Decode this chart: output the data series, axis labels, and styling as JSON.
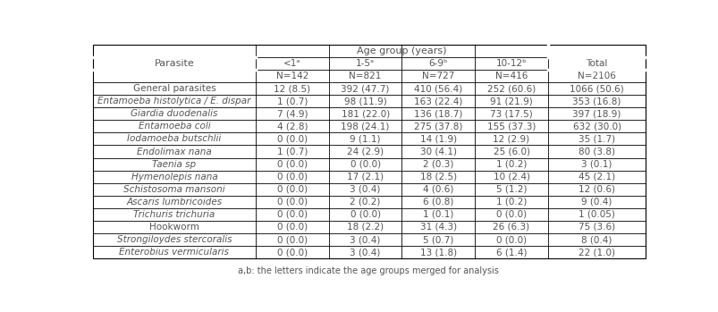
{
  "title": "Age group (years)",
  "footnote": "a,b: the letters indicate the age groups merged for analysis",
  "col_headers": [
    "<1ᵃ",
    "1-5ᵃ",
    "6-9ᵇ",
    "10-12ᵇ",
    "Total"
  ],
  "col_n": [
    "N=142",
    "N=821",
    "N=727",
    "N=416",
    "N=2106"
  ],
  "row_label_header": "Parasite",
  "rows": [
    {
      "label": "General parasites",
      "italic": false,
      "values": [
        "12 (8.5)",
        "392 (47.7)",
        "410 (56.4)",
        "252 (60.6)",
        "1066 (50.6)"
      ]
    },
    {
      "label": "Entamoeba histolytica / E. dispar",
      "italic": true,
      "values": [
        "1 (0.7)",
        "98 (11.9)",
        "163 (22.4)",
        "91 (21.9)",
        "353 (16.8)"
      ]
    },
    {
      "label": "Giardia duodenalis",
      "italic": true,
      "values": [
        "7 (4.9)",
        "181 (22.0)",
        "136 (18.7)",
        "73 (17.5)",
        "397 (18.9)"
      ]
    },
    {
      "label": "Entamoeba coli",
      "italic": true,
      "values": [
        "4 (2.8)",
        "198 (24.1)",
        "275 (37.8)",
        "155 (37.3)",
        "632 (30.0)"
      ]
    },
    {
      "label": "Iodamoeba butschlii",
      "italic": true,
      "values": [
        "0 (0.0)",
        "9 (1.1)",
        "14 (1.9)",
        "12 (2.9)",
        "35 (1.7)"
      ]
    },
    {
      "label": "Endolimax nana",
      "italic": true,
      "values": [
        "1 (0.7)",
        "24 (2.9)",
        "30 (4.1)",
        "25 (6.0)",
        "80 (3.8)"
      ]
    },
    {
      "label": "Taenia sp",
      "italic": true,
      "values": [
        "0 (0.0)",
        "0 (0.0)",
        "2 (0.3)",
        "1 (0.2)",
        "3 (0.1)"
      ]
    },
    {
      "label": "Hymenolepis nana",
      "italic": true,
      "values": [
        "0 (0.0)",
        "17 (2.1)",
        "18 (2.5)",
        "10 (2.4)",
        "45 (2.1)"
      ]
    },
    {
      "label": "Schistosoma mansoni",
      "italic": true,
      "values": [
        "0 (0.0)",
        "3 (0.4)",
        "4 (0.6)",
        "5 (1.2)",
        "12 (0.6)"
      ]
    },
    {
      "label": "Ascaris lumbricoides",
      "italic": true,
      "values": [
        "0 (0.0)",
        "2 (0.2)",
        "6 (0.8)",
        "1 (0.2)",
        "9 (0.4)"
      ]
    },
    {
      "label": "Trichuris trichuria",
      "italic": true,
      "values": [
        "0 (0.0)",
        "0 (0.0)",
        "1 (0.1)",
        "0 (0.0)",
        "1 (0.05)"
      ]
    },
    {
      "label": "Hookworm",
      "italic": false,
      "values": [
        "0 (0.0)",
        "18 (2.2)",
        "31 (4.3)",
        "26 (6.3)",
        "75 (3.6)"
      ]
    },
    {
      "label": "Strongiloydes stercoralis",
      "italic": true,
      "values": [
        "0 (0.0)",
        "3 (0.4)",
        "5 (0.7)",
        "0 (0.0)",
        "8 (0.4)"
      ]
    },
    {
      "label": "Enterobius vermicularis",
      "italic": true,
      "values": [
        "0 (0.0)",
        "3 (0.4)",
        "13 (1.8)",
        "6 (1.4)",
        "22 (1.0)"
      ]
    }
  ],
  "bg_color": "#ffffff",
  "line_color": "#000000",
  "text_color": "#555555",
  "header_text_color": "#555555",
  "font_size": 7.5,
  "header_font_size": 8.0
}
